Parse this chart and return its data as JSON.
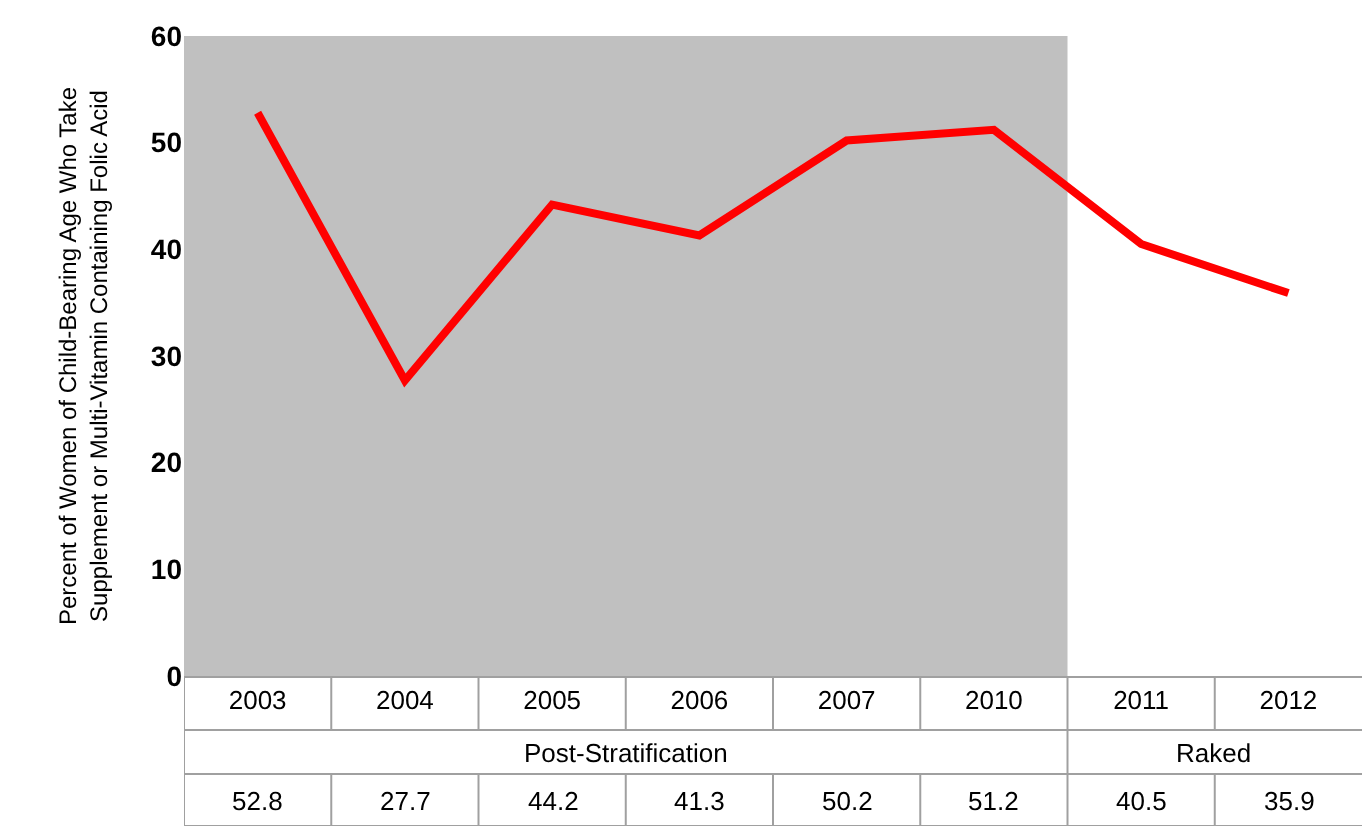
{
  "chart_data": {
    "type": "line",
    "ylabel": "Percent of Women of Child-Bearing Age Who Take\nSupplement or Multi-Vitamin Containing Folic Acid",
    "categories": [
      "2003",
      "2004",
      "2005",
      "2006",
      "2007",
      "2010",
      "2011",
      "2012"
    ],
    "series": [
      {
        "color": "#ff0000",
        "values": [
          52.8,
          27.7,
          44.2,
          41.3,
          50.2,
          51.2,
          40.5,
          35.9
        ]
      }
    ],
    "ylim": [
      0,
      60
    ],
    "yticks": [
      0,
      10,
      20,
      30,
      40,
      50,
      60
    ],
    "bands": [
      {
        "axis": "x",
        "from": "2003",
        "to": "2010",
        "color": "#c0c0c0"
      }
    ],
    "annotations": [
      "Post-Stratification",
      "Raked"
    ],
    "data_labels": true,
    "grid": false,
    "marker": "none",
    "line_style": "solid"
  }
}
